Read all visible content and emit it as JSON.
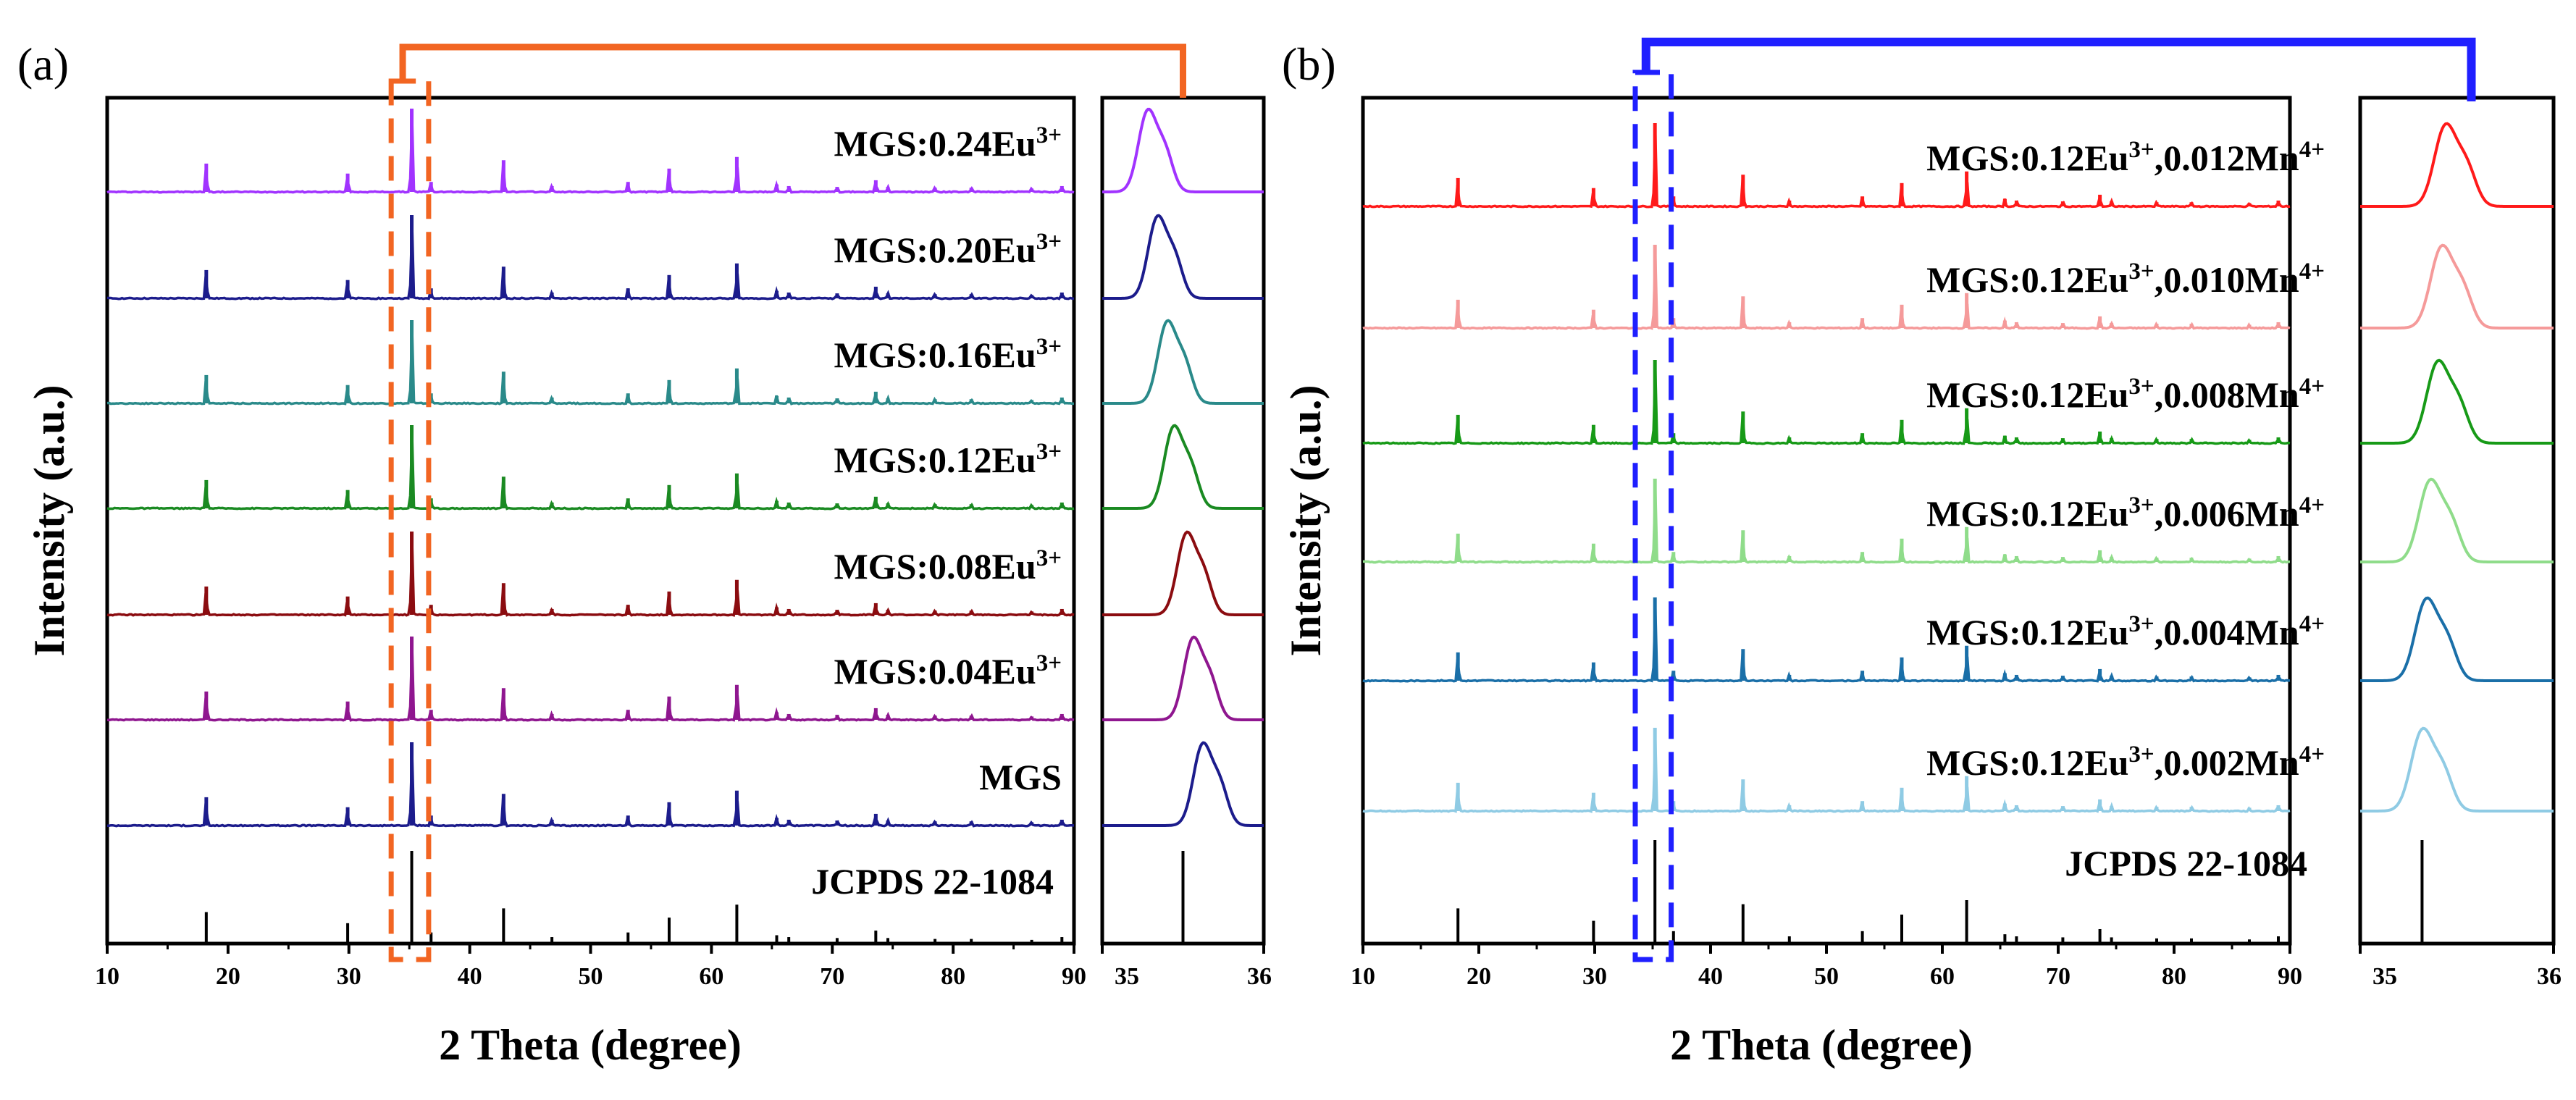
{
  "chart_data": [
    {
      "id": "a",
      "panel_label": "(a)",
      "type": "line",
      "title": "",
      "xlabel": "2 Theta (degree)",
      "ylabel": "Intensity (a.u.)",
      "xlim": [
        10,
        90
      ],
      "xticks": [
        "10",
        "20",
        "30",
        "40",
        "50",
        "60",
        "70",
        "80",
        "90"
      ],
      "peaks": [
        18.2,
        29.9,
        35.2,
        36.8,
        42.8,
        46.8,
        53.1,
        56.5,
        62.1,
        65.4,
        66.4,
        70.4,
        73.6,
        74.6,
        78.5,
        81.5,
        86.5,
        89.0
      ],
      "peak_rel": [
        0.34,
        0.22,
        1.0,
        0.12,
        0.38,
        0.07,
        0.12,
        0.28,
        0.42,
        0.09,
        0.07,
        0.06,
        0.14,
        0.06,
        0.05,
        0.05,
        0.04,
        0.07
      ],
      "highlight_color": "#f26522",
      "highlight_range": [
        33.5,
        36.6
      ],
      "zoom": {
        "xlim": [
          35,
          36
        ],
        "xticks": [
          "35",
          "36"
        ]
      },
      "series": [
        {
          "name": "MGS:0.24Eu",
          "sup": "3+",
          "color": "#a133ff",
          "zoom_peak": 35.28
        },
        {
          "name": "MGS:0.20Eu",
          "sup": "3+",
          "color": "#1c1c8c",
          "zoom_peak": 35.34
        },
        {
          "name": "MGS:0.16Eu",
          "sup": "3+",
          "color": "#2a8a8a",
          "zoom_peak": 35.4
        },
        {
          "name": "MGS:0.12Eu",
          "sup": "3+",
          "color": "#1a8a22",
          "zoom_peak": 35.44
        },
        {
          "name": "MGS:0.08Eu",
          "sup": "3+",
          "color": "#8b0c10",
          "zoom_peak": 35.52
        },
        {
          "name": "MGS:0.04Eu",
          "sup": "3+",
          "color": "#8f168f",
          "zoom_peak": 35.56
        },
        {
          "name": "MGS",
          "sup": "",
          "color": "#1c1c8c",
          "zoom_peak": 35.62
        }
      ],
      "reference": {
        "name": "JCPDS 22-1084",
        "zoom_line": 35.5
      }
    },
    {
      "id": "b",
      "panel_label": "(b)",
      "type": "line",
      "title": "",
      "xlabel": "2 Theta (degree)",
      "ylabel": "Intensity (a.u.)",
      "xlim": [
        10,
        90
      ],
      "xticks": [
        "10",
        "20",
        "30",
        "40",
        "50",
        "60",
        "70",
        "80",
        "90"
      ],
      "peaks": [
        18.2,
        29.9,
        35.2,
        36.8,
        42.8,
        46.8,
        53.1,
        56.5,
        62.1,
        65.4,
        66.4,
        70.4,
        73.6,
        74.6,
        78.5,
        81.5,
        86.5,
        89.0
      ],
      "peak_rel": [
        0.34,
        0.22,
        1.0,
        0.12,
        0.38,
        0.07,
        0.12,
        0.28,
        0.42,
        0.09,
        0.07,
        0.06,
        0.14,
        0.06,
        0.05,
        0.05,
        0.04,
        0.07
      ],
      "highlight_color": "#1f1fff",
      "highlight_range": [
        33.5,
        36.6
      ],
      "zoom": {
        "xlim": [
          35,
          36
        ],
        "xticks": [
          "35",
          "36"
        ]
      },
      "series": [
        {
          "name": "MGS:0.12Eu",
          "sup": "3+",
          "name2": ",0.012Mn",
          "sup2": "4+",
          "color": "#ff1a1a",
          "zoom_peak": 35.44
        },
        {
          "name": "MGS:0.12Eu",
          "sup": "3+",
          "name2": ",0.010Mn",
          "sup2": "4+",
          "color": "#f59a9a",
          "zoom_peak": 35.42
        },
        {
          "name": "MGS:0.12Eu",
          "sup": "3+",
          "name2": ",0.008Mn",
          "sup2": "4+",
          "color": "#179a17",
          "zoom_peak": 35.4
        },
        {
          "name": "MGS:0.12Eu",
          "sup": "3+",
          "name2": ",0.006Mn",
          "sup2": "4+",
          "color": "#8fdc8a",
          "zoom_peak": 35.36
        },
        {
          "name": "MGS:0.12Eu",
          "sup": "3+",
          "name2": ",0.004Mn",
          "sup2": "4+",
          "color": "#1a6fa8",
          "zoom_peak": 35.34
        },
        {
          "name": "MGS:0.12Eu",
          "sup": "3+",
          "name2": ",0.002Mn",
          "sup2": "4+",
          "color": "#8fcbe4",
          "zoom_peak": 35.32
        }
      ],
      "reference": {
        "name": "JCPDS 22-1084",
        "zoom_line": 35.32
      }
    }
  ]
}
